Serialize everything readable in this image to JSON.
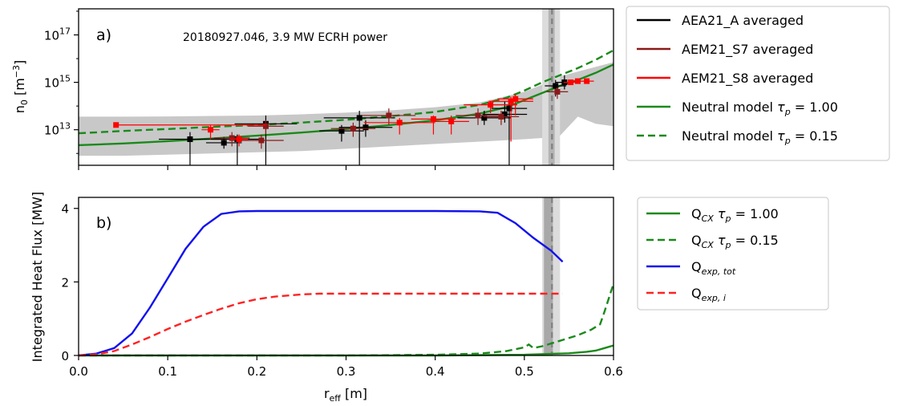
{
  "chart_data": [
    {
      "id": "panel-a",
      "type": "scatter",
      "panel_label": "a)",
      "annotation": "20180927.046, 3.9 MW ECRH power",
      "ylabel": "n",
      "ylabel_sub": "0",
      "ylabel_unit_pre": " [m",
      "ylabel_unit_sup": "−3",
      "ylabel_unit_post": "]",
      "yscale": "log",
      "xlim": [
        0.0,
        0.6
      ],
      "ylim_log10": [
        11.5,
        18.1
      ],
      "yticks": [
        {
          "base": "10",
          "exp": "13",
          "value": 13
        },
        {
          "base": "10",
          "exp": "15",
          "value": 15
        },
        {
          "base": "10",
          "exp": "17",
          "value": 17
        }
      ],
      "xticks": [
        0.0,
        0.1,
        0.2,
        0.3,
        0.4,
        0.5,
        0.6
      ],
      "grey_band": {
        "color": "#c8c8c8",
        "x": [
          0.0,
          0.05,
          0.1,
          0.15,
          0.2,
          0.25,
          0.3,
          0.35,
          0.4,
          0.45,
          0.5,
          0.52,
          0.54,
          0.56,
          0.58,
          0.6
        ],
        "upper_log10": [
          13.55,
          13.55,
          13.56,
          13.58,
          13.6,
          13.65,
          13.72,
          13.82,
          13.95,
          14.15,
          14.6,
          14.9,
          15.25,
          15.45,
          15.65,
          15.85
        ],
        "lower_log10": [
          11.9,
          11.9,
          11.95,
          12.0,
          12.05,
          12.1,
          12.2,
          12.3,
          12.4,
          12.5,
          12.6,
          12.65,
          12.75,
          13.55,
          13.25,
          13.15
        ]
      },
      "vband_outer": {
        "x": [
          0.52,
          0.54
        ],
        "color": "#dcdcdc"
      },
      "vband_inner": {
        "x": [
          0.527,
          0.534
        ],
        "color": "#b4b4b4"
      },
      "vline": {
        "x": 0.531,
        "color": "#808080"
      },
      "series": [
        {
          "name": "AEA21_A averaged",
          "kind": "errorbar",
          "color": "#000000",
          "points": [
            {
              "x": 0.125,
              "y": 12.6,
              "xerr": 0.035,
              "ylo": 11.5,
              "yhi": 12.9
            },
            {
              "x": 0.163,
              "y": 12.45,
              "xerr": 0.02,
              "ylo": 12.2,
              "yhi": 12.7
            },
            {
              "x": 0.178,
              "y": 12.6,
              "xerr": 0.03,
              "ylo": 11.5,
              "yhi": 12.8
            },
            {
              "x": 0.21,
              "y": 13.25,
              "xerr": 0.035,
              "ylo": 11.5,
              "yhi": 13.6
            },
            {
              "x": 0.295,
              "y": 12.95,
              "xerr": 0.025,
              "ylo": 12.5,
              "yhi": 13.2
            },
            {
              "x": 0.315,
              "y": 13.5,
              "xerr": 0.04,
              "ylo": 11.5,
              "yhi": 13.8
            },
            {
              "x": 0.322,
              "y": 13.1,
              "xerr": 0.03,
              "ylo": 12.7,
              "yhi": 13.4
            },
            {
              "x": 0.455,
              "y": 13.5,
              "xerr": 0.03,
              "ylo": 13.2,
              "yhi": 13.8
            },
            {
              "x": 0.478,
              "y": 13.65,
              "xerr": 0.025,
              "ylo": 13.3,
              "yhi": 14.2
            },
            {
              "x": 0.483,
              "y": 13.9,
              "xerr": 0.02,
              "ylo": 11.5,
              "yhi": 14.3
            },
            {
              "x": 0.535,
              "y": 14.85,
              "xerr": 0.012,
              "ylo": 14.4,
              "yhi": 15.1
            },
            {
              "x": 0.545,
              "y": 15.0,
              "xerr": 0.01,
              "ylo": 14.7,
              "yhi": 15.3
            }
          ]
        },
        {
          "name": "AEM21_S7 averaged",
          "kind": "errorbar",
          "color": "#8b1a1a",
          "points": [
            {
              "x": 0.172,
              "y": 12.65,
              "xerr": 0.02,
              "ylo": 12.3,
              "yhi": 12.9
            },
            {
              "x": 0.205,
              "y": 12.55,
              "xerr": 0.025,
              "ylo": 12.2,
              "yhi": 12.8
            },
            {
              "x": 0.21,
              "y": 13.15,
              "xerr": 0.02,
              "ylo": 12.8,
              "yhi": 13.4
            },
            {
              "x": 0.308,
              "y": 13.05,
              "xerr": 0.025,
              "ylo": 12.7,
              "yhi": 13.3
            },
            {
              "x": 0.348,
              "y": 13.6,
              "xerr": 0.03,
              "ylo": 13.2,
              "yhi": 13.9
            },
            {
              "x": 0.448,
              "y": 13.6,
              "xerr": 0.025,
              "ylo": 13.2,
              "yhi": 13.9
            },
            {
              "x": 0.474,
              "y": 13.55,
              "xerr": 0.02,
              "ylo": 13.2,
              "yhi": 13.8
            },
            {
              "x": 0.537,
              "y": 14.6,
              "xerr": 0.012,
              "ylo": 14.3,
              "yhi": 14.8
            }
          ]
        },
        {
          "name": "AEM21_S8 averaged",
          "kind": "errorbar",
          "color": "#ff0000",
          "points": [
            {
              "x": 0.042,
              "y": 13.2,
              "xerr": 0.0,
              "xhi_abs": 0.21,
              "ylo": 13.1,
              "yhi": 13.3
            },
            {
              "x": 0.148,
              "y": 13.0,
              "xerr": 0.01,
              "ylo": 12.6,
              "yhi": 13.2
            },
            {
              "x": 0.18,
              "y": 12.6,
              "xerr": 0.01,
              "ylo": 12.3,
              "yhi": 12.8
            },
            {
              "x": 0.36,
              "y": 13.3,
              "xerr": 0.04,
              "ylo": 12.8,
              "yhi": 13.5
            },
            {
              "x": 0.398,
              "y": 13.45,
              "xerr": 0.025,
              "ylo": 12.8,
              "yhi": 13.6
            },
            {
              "x": 0.418,
              "y": 13.35,
              "xerr": 0.02,
              "ylo": 12.8,
              "yhi": 13.6
            },
            {
              "x": 0.462,
              "y": 14.05,
              "xerr": 0.03,
              "ylo": 13.7,
              "yhi": 14.2
            },
            {
              "x": 0.485,
              "y": 14.2,
              "xerr": 0.025,
              "ylo": 12.5,
              "yhi": 14.4
            },
            {
              "x": 0.49,
              "y": 14.3,
              "xerr": 0.02,
              "ylo": 13.6,
              "yhi": 14.5
            },
            {
              "x": 0.552,
              "y": 15.0,
              "xerr": 0.008,
              "ylo": 14.9,
              "yhi": 15.1
            },
            {
              "x": 0.56,
              "y": 15.05,
              "xerr": 0.008,
              "ylo": 14.95,
              "yhi": 15.15
            },
            {
              "x": 0.57,
              "y": 15.05,
              "xerr": 0.008,
              "ylo": 14.95,
              "yhi": 15.15
            }
          ]
        },
        {
          "name": "Neutral model",
          "legend_suffix": " = 1.00",
          "kind": "line",
          "dash": false,
          "color": "#1a8a1a",
          "x": [
            0.0,
            0.05,
            0.1,
            0.15,
            0.2,
            0.25,
            0.3,
            0.35,
            0.4,
            0.45,
            0.48,
            0.5,
            0.52,
            0.54,
            0.56,
            0.58,
            0.6
          ],
          "y": [
            12.35,
            12.42,
            12.52,
            12.63,
            12.75,
            12.88,
            13.03,
            13.2,
            13.4,
            13.68,
            13.95,
            14.25,
            14.55,
            14.85,
            15.1,
            15.4,
            15.75
          ]
        },
        {
          "name": "Neutral model",
          "legend_suffix": " = 0.15",
          "kind": "line",
          "dash": true,
          "color": "#1a8a1a",
          "x": [
            0.0,
            0.05,
            0.1,
            0.15,
            0.2,
            0.25,
            0.3,
            0.35,
            0.4,
            0.45,
            0.48,
            0.5,
            0.52,
            0.54,
            0.56,
            0.58,
            0.6
          ],
          "y": [
            12.85,
            12.95,
            13.03,
            13.12,
            13.2,
            13.3,
            13.42,
            13.57,
            13.75,
            14.05,
            14.35,
            14.65,
            15.0,
            15.3,
            15.6,
            15.95,
            16.35
          ]
        }
      ],
      "legend": [
        {
          "text": "AEA21_A averaged",
          "color": "#000000",
          "dash": false,
          "tau": false
        },
        {
          "text": "AEM21_S7 averaged",
          "color": "#8b1a1a",
          "dash": false,
          "tau": false
        },
        {
          "text": "AEM21_S8 averaged",
          "color": "#ff0000",
          "dash": false,
          "tau": false
        },
        {
          "text": "Neutral model",
          "suffix": " = 1.00",
          "color": "#1a8a1a",
          "dash": false,
          "tau": true
        },
        {
          "text": "Neutral model",
          "suffix": " = 0.15",
          "color": "#1a8a1a",
          "dash": true,
          "tau": true
        }
      ]
    },
    {
      "id": "panel-b",
      "type": "line",
      "panel_label": "b)",
      "ylabel": "Integrated Heat Flux [MW]",
      "xlabel": "r",
      "xlabel_sub": "eff",
      "xlabel_unit": " [m]",
      "xlim": [
        0.0,
        0.6
      ],
      "ylim": [
        0.0,
        4.3
      ],
      "yticks": [
        0,
        2,
        4
      ],
      "xticks": [
        0.0,
        0.1,
        0.2,
        0.3,
        0.4,
        0.5,
        0.6
      ],
      "xtick_labels": [
        "0.0",
        "0.1",
        "0.2",
        "0.3",
        "0.4",
        "0.5",
        "0.6"
      ],
      "vband_outer": {
        "x": [
          0.52,
          0.54
        ],
        "color": "#dcdcdc"
      },
      "vband_inner": {
        "x": [
          0.522,
          0.532
        ],
        "color": "#a8a8a8"
      },
      "vline": {
        "x": 0.531,
        "color": "#808080"
      },
      "series": [
        {
          "name": "Q_CX tau_p = 1.00",
          "color": "#1a8a1a",
          "dash": false,
          "x": [
            0.0,
            0.1,
            0.2,
            0.3,
            0.4,
            0.5,
            0.55,
            0.57,
            0.58,
            0.59,
            0.6
          ],
          "y": [
            0.0,
            0.0,
            0.0,
            0.0,
            0.0,
            0.02,
            0.06,
            0.1,
            0.13,
            0.2,
            0.27
          ]
        },
        {
          "name": "Q_CX tau_p = 0.15",
          "color": "#1a8a1a",
          "dash": true,
          "x": [
            0.0,
            0.1,
            0.2,
            0.3,
            0.4,
            0.45,
            0.48,
            0.5,
            0.505,
            0.51,
            0.52,
            0.54,
            0.56,
            0.575,
            0.585,
            0.59,
            0.6
          ],
          "y": [
            0.0,
            0.0,
            0.0,
            0.0,
            0.02,
            0.05,
            0.12,
            0.22,
            0.3,
            0.2,
            0.25,
            0.4,
            0.55,
            0.7,
            0.85,
            1.2,
            1.95
          ]
        },
        {
          "name": "Q_exp,tot",
          "color": "#1111ee",
          "dash": false,
          "x": [
            0.0,
            0.02,
            0.04,
            0.06,
            0.08,
            0.1,
            0.12,
            0.14,
            0.16,
            0.18,
            0.2,
            0.25,
            0.3,
            0.35,
            0.4,
            0.45,
            0.47,
            0.49,
            0.51,
            0.53,
            0.543
          ],
          "y": [
            0.0,
            0.05,
            0.2,
            0.6,
            1.3,
            2.1,
            2.9,
            3.5,
            3.85,
            3.92,
            3.93,
            3.93,
            3.93,
            3.93,
            3.93,
            3.92,
            3.88,
            3.6,
            3.2,
            2.85,
            2.55
          ]
        },
        {
          "name": "Q_exp,i",
          "color": "#ff2222",
          "dash": true,
          "x": [
            0.0,
            0.02,
            0.04,
            0.06,
            0.08,
            0.1,
            0.12,
            0.14,
            0.16,
            0.18,
            0.2,
            0.22,
            0.25,
            0.27,
            0.3,
            0.4,
            0.5,
            0.543
          ],
          "y": [
            0.0,
            0.03,
            0.12,
            0.3,
            0.5,
            0.72,
            0.92,
            1.1,
            1.27,
            1.42,
            1.53,
            1.6,
            1.66,
            1.68,
            1.68,
            1.68,
            1.68,
            1.68
          ]
        }
      ],
      "legend": [
        {
          "main": "Q",
          "sub": "CX",
          "suffix": " = 1.00",
          "tau": true,
          "color": "#1a8a1a",
          "dash": false
        },
        {
          "main": "Q",
          "sub": "CX",
          "suffix": " = 0.15",
          "tau": true,
          "color": "#1a8a1a",
          "dash": true
        },
        {
          "main": "Q",
          "sub": "exp, tot",
          "suffix": "",
          "tau": false,
          "color": "#1111ee",
          "dash": false
        },
        {
          "main": "Q",
          "sub": "exp, i",
          "suffix": "",
          "tau": false,
          "color": "#ff2222",
          "dash": true
        }
      ]
    }
  ]
}
